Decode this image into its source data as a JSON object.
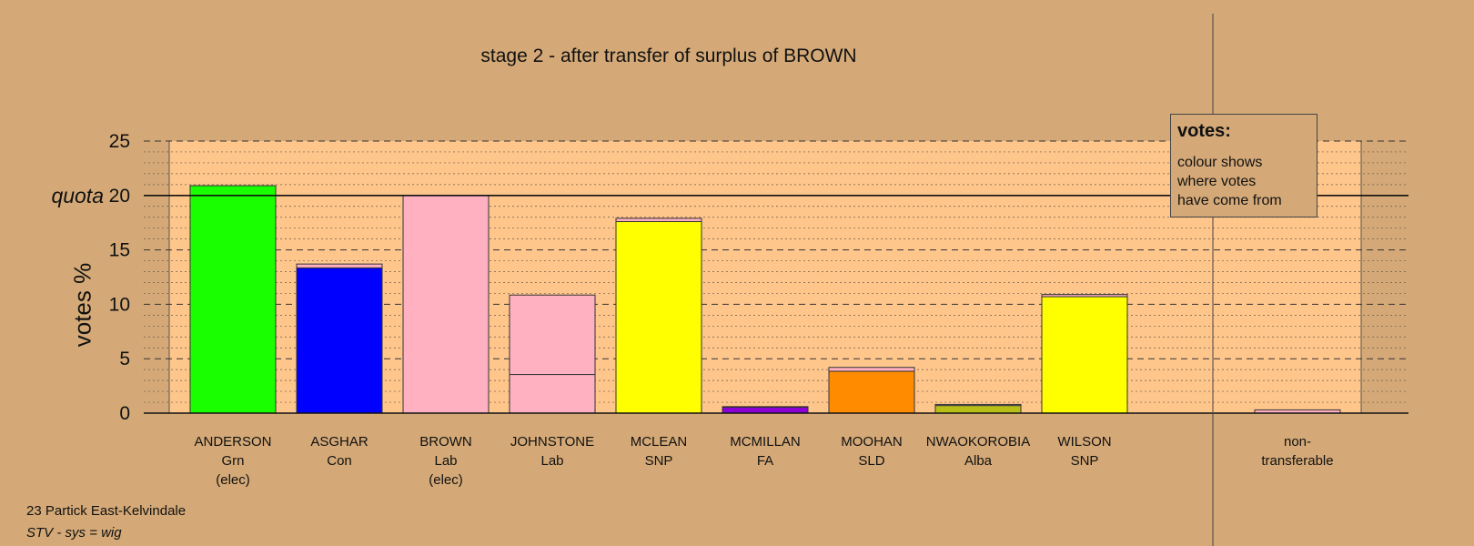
{
  "chart_data": {
    "type": "bar",
    "title": "stage 2 - after transfer of surplus of BROWN",
    "ylabel": "votes %",
    "ylim": [
      0,
      25
    ],
    "yticks": [
      "0",
      "5",
      "10",
      "15",
      "20",
      "25"
    ],
    "quota": 20,
    "quota_label": "quota",
    "grid": true,
    "legend": {
      "position": "top-right",
      "heading": "votes:",
      "text": "colour shows where votes have come from"
    },
    "categories": [
      {
        "name": "ANDERSON",
        "party": "Grn",
        "note": "(elec)",
        "color": "#19ff00",
        "segments": [
          {
            "value": 20.9,
            "color": "#19ff00"
          }
        ]
      },
      {
        "name": "ASGHAR",
        "party": "Con",
        "note": "",
        "color": "#0000ff",
        "segments": [
          {
            "value": 13.35,
            "color": "#0000ff"
          },
          {
            "value": 0.35,
            "color": "#ffb0c1"
          }
        ]
      },
      {
        "name": "BROWN",
        "party": "Lab",
        "note": "(elec)",
        "color": "#ffb0c1",
        "segments": [
          {
            "value": 20.0,
            "color": "#ffb0c1"
          }
        ]
      },
      {
        "name": "JOHNSTONE",
        "party": "Lab",
        "note": "",
        "color": "#ffb0c1",
        "segments": [
          {
            "value": 3.55,
            "color": "#ffb0c1"
          },
          {
            "value": 7.3,
            "color": "#ffb0c1"
          }
        ]
      },
      {
        "name": "MCLEAN",
        "party": "SNP",
        "note": "",
        "color": "#ffff00",
        "segments": [
          {
            "value": 17.6,
            "color": "#ffff00"
          },
          {
            "value": 0.3,
            "color": "#ffb0c1"
          }
        ]
      },
      {
        "name": "MCMILLAN",
        "party": "FA",
        "note": "",
        "color": "#8b00d4",
        "segments": [
          {
            "value": 0.55,
            "color": "#8b00d4"
          },
          {
            "value": 0.05,
            "color": "#ffb0c1"
          }
        ]
      },
      {
        "name": "MOOHAN",
        "party": "SLD",
        "note": "",
        "color": "#ff8c00",
        "segments": [
          {
            "value": 3.85,
            "color": "#ff8c00"
          },
          {
            "value": 0.35,
            "color": "#ffb0c1"
          }
        ]
      },
      {
        "name": "NWAOKOROBIA",
        "party": "Alba",
        "note": "",
        "color": "#b8c018",
        "segments": [
          {
            "value": 0.7,
            "color": "#b8c018"
          },
          {
            "value": 0.1,
            "color": "#ffb0c1"
          }
        ]
      },
      {
        "name": "WILSON",
        "party": "SNP",
        "note": "",
        "color": "#ffff00",
        "segments": [
          {
            "value": 10.7,
            "color": "#ffff00"
          },
          {
            "value": 0.2,
            "color": "#ffb0c1"
          }
        ]
      }
    ],
    "nontransferable": {
      "label_line1": "non-",
      "label_line2": "transferable",
      "value": 0.3,
      "color": "#ffb0c1"
    }
  },
  "footer": {
    "ward": "23 Partick East-Kelvindale",
    "system": "STV - sys = wig"
  }
}
